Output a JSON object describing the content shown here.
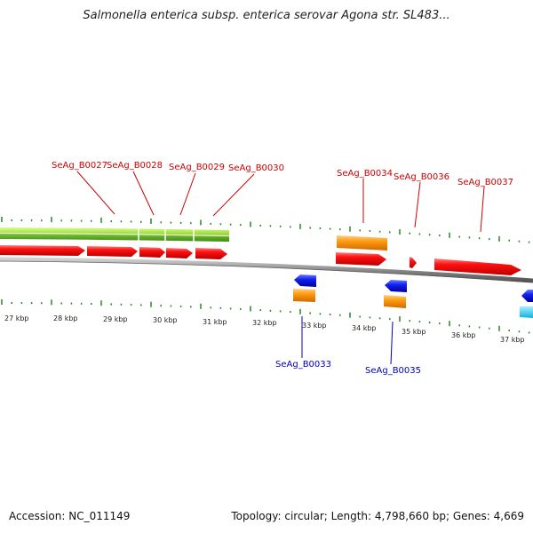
{
  "title": "Salmonella enterica subsp. enterica serovar Agona str. SL483...",
  "footer": {
    "accession": "Accession: NC_011149",
    "summary": "Topology: circular; Length: 4,798,660 bp; Genes: 4,669"
  },
  "colors": {
    "upper_gene_label": "#cc0000",
    "lower_gene_label": "#0000bb",
    "forward_gene": "#ee0000",
    "reverse_gene": "#0000dd",
    "orange_feature": "#ff9900",
    "green_track": "#55aa11",
    "cyan_feature": "#22ccee",
    "backbone": "#888888",
    "tick": "#228822"
  },
  "scale_labels": [
    "27 kbp",
    "28 kbp",
    "29 kbp",
    "30 kbp",
    "31 kbp",
    "32 kbp",
    "33 kbp",
    "34 kbp",
    "35 kbp",
    "36 kbp",
    "37 kbp"
  ],
  "upper_genes": [
    "SeAg_B0027",
    "SeAg_B0028",
    "SeAg_B0029",
    "SeAg_B0030",
    "SeAg_B0034",
    "SeAg_B0036",
    "SeAg_B0037"
  ],
  "lower_genes": [
    "SeAg_B0033",
    "SeAg_B0035"
  ]
}
